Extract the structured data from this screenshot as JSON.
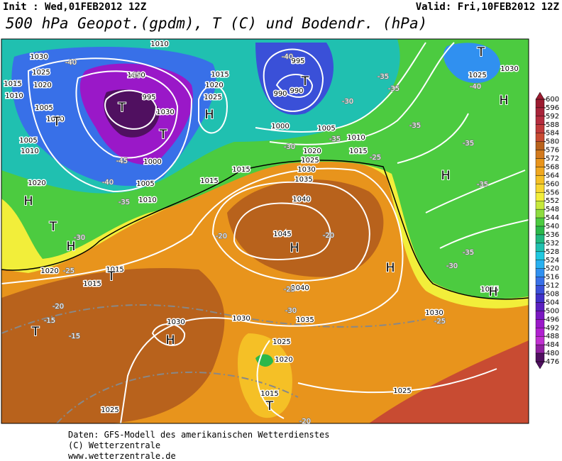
{
  "header": {
    "init": "Init : Wed,01FEB2012 12Z",
    "valid": "Valid: Fri,10FEB2012 12Z",
    "title": "500 hPa Geopot.(gpdm), T (C) und Bodendr. (hPa)"
  },
  "legend": {
    "ticks": [
      600,
      596,
      592,
      588,
      584,
      580,
      576,
      572,
      568,
      564,
      560,
      556,
      552,
      548,
      544,
      540,
      536,
      532,
      528,
      524,
      520,
      516,
      512,
      508,
      504,
      500,
      496,
      492,
      488,
      484,
      480,
      476
    ],
    "colors": [
      "#9b1b30",
      "#a8243a",
      "#b52d3f",
      "#c03a3a",
      "#c84b32",
      "#b8621c",
      "#d27a1e",
      "#e8941c",
      "#f0a820",
      "#f5c026",
      "#f7d630",
      "#f2ee3a",
      "#c6e83c",
      "#8edc40",
      "#4ccb40",
      "#2cb84a",
      "#22b880",
      "#20c0b0",
      "#20c8e0",
      "#28b0f0",
      "#3090f0",
      "#3870e8",
      "#3a50d8",
      "#4030c8",
      "#5a20c0",
      "#7a18c0",
      "#9a18c8",
      "#b020d0",
      "#c030d0",
      "#9020a0",
      "#501060"
    ]
  },
  "map": {
    "isobar_labels": [
      "1030",
      "1025",
      "1020",
      "1015",
      "1010",
      "1005",
      "1000",
      "1005",
      "1010",
      "1020",
      "1010",
      "1000",
      "995",
      "1030",
      "1000",
      "1005",
      "1010",
      "1015",
      "1015",
      "1015",
      "1020",
      "1025",
      "995",
      "990",
      "990",
      "1000",
      "1005",
      "1010",
      "1015",
      "1020",
      "1025",
      "1030",
      "1035",
      "1040",
      "1045",
      "1040",
      "1035",
      "1030",
      "1030",
      "1025",
      "1020",
      "1015",
      "1025",
      "1025",
      "1030",
      "1015",
      "1025",
      "1030",
      "1020",
      "1015",
      "1015"
    ],
    "temperature_labels": [
      "-40",
      "-45",
      "-45",
      "-40",
      "-35",
      "-30",
      "-25",
      "-20",
      "-15",
      "-15",
      "-20",
      "-20",
      "-25",
      "-30",
      "-25",
      "-30",
      "-35",
      "-35",
      "-35",
      "-35",
      "-40",
      "-35",
      "-35",
      "-40",
      "-30",
      "-30",
      "-35",
      "-25",
      "-20"
    ],
    "pressure_centers": [
      "T",
      "T",
      "T",
      "H",
      "T",
      "H",
      "T",
      "H",
      "H",
      "H",
      "T",
      "T",
      "H",
      "T",
      "T",
      "H",
      "H",
      "H"
    ]
  },
  "footer": {
    "source": "Daten: GFS-Modell des amerikanischen Wetterdienstes",
    "copyright": "(C) Wetterzentrale",
    "url": "www.wetterzentrale.de"
  }
}
